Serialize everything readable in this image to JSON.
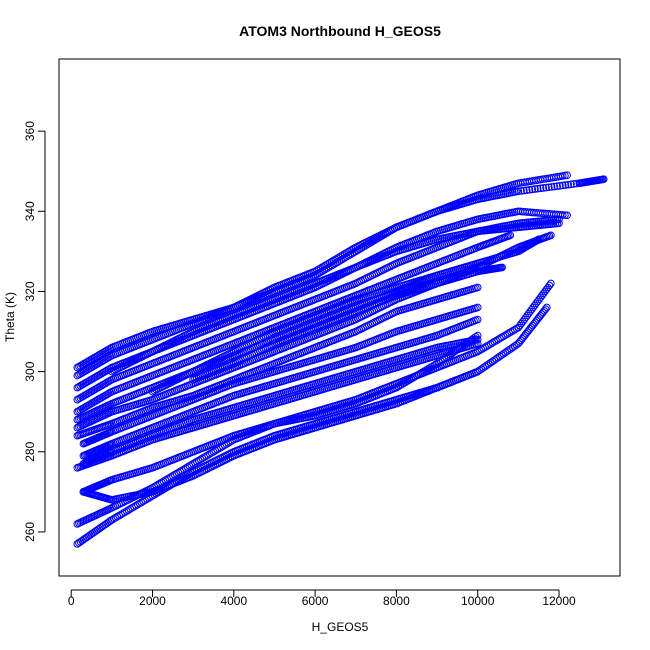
{
  "chart_data": {
    "type": "scatter",
    "title": "ATOM3 Northbound H_GEOS5",
    "xlabel": "H_GEOS5",
    "ylabel": "Theta (K)",
    "xlim": [
      -300,
      13500
    ],
    "ylim": [
      249,
      378
    ],
    "xticks": [
      0,
      2000,
      4000,
      6000,
      8000,
      10000,
      12000
    ],
    "yticks": [
      260,
      280,
      300,
      320,
      340,
      360
    ],
    "marker": "open-circle",
    "color": "#0000ff",
    "grid": false,
    "legend": "none",
    "series": [
      {
        "x": [
          150,
          1000,
          2000,
          3000,
          4000,
          5000,
          6000,
          7000,
          8000,
          9000,
          10000,
          11000,
          12200
        ],
        "values": [
          301,
          306,
          310,
          313,
          316,
          320,
          324,
          330,
          336,
          340,
          344,
          347,
          349
        ]
      },
      {
        "x": [
          150,
          1000,
          2000,
          3000,
          4000,
          5000,
          6000,
          7000,
          8000,
          9000,
          10000,
          11000,
          12500,
          13100
        ],
        "values": [
          299,
          304,
          308,
          312,
          316,
          321,
          325,
          331,
          336,
          340,
          343,
          345,
          347,
          348
        ]
      },
      {
        "x": [
          150,
          1000,
          2000,
          3000,
          4000,
          5000,
          6000,
          7000,
          8000,
          9000,
          10000,
          11000,
          12200
        ],
        "values": [
          296,
          301,
          305,
          309,
          313,
          317,
          321,
          326,
          331,
          335,
          338,
          340,
          339
        ]
      },
      {
        "x": [
          150,
          1000,
          2000,
          3000,
          4000,
          5000,
          6000,
          7000,
          8000,
          9000,
          10000,
          11000,
          12000
        ],
        "values": [
          293,
          298,
          302,
          306,
          310,
          314,
          318,
          322,
          327,
          331,
          335,
          337,
          338
        ]
      },
      {
        "x": [
          150,
          1000,
          2000,
          3000,
          4000,
          5000,
          6000,
          7000,
          8000,
          9000,
          10000,
          10800
        ],
        "values": [
          290,
          295,
          299,
          303,
          307,
          311,
          315,
          319,
          323,
          327,
          331,
          334
        ]
      },
      {
        "x": [
          150,
          1000,
          2000,
          3000,
          4000,
          5000,
          6000,
          7000,
          8000,
          9000,
          10000
        ],
        "values": [
          288,
          292,
          296,
          300,
          304,
          308,
          312,
          316,
          320,
          324,
          327
        ]
      },
      {
        "x": [
          150,
          1000,
          2000,
          3000,
          4000,
          5000,
          6000,
          7000,
          8000,
          9000,
          10000,
          11000,
          11800
        ],
        "values": [
          286,
          290,
          293,
          297,
          301,
          305,
          309,
          313,
          318,
          322,
          326,
          331,
          334
        ]
      },
      {
        "x": [
          150,
          1000,
          2000,
          3000,
          4000,
          5000,
          6000,
          7000,
          8000,
          9000,
          10000
        ],
        "values": [
          284,
          287,
          291,
          294,
          298,
          302,
          306,
          310,
          315,
          318,
          321
        ]
      },
      {
        "x": [
          300,
          1000,
          2000,
          3000,
          4000,
          5000,
          6000,
          7000,
          8000,
          9000,
          10000
        ],
        "values": [
          282,
          285,
          289,
          293,
          297,
          300,
          303,
          306,
          310,
          313,
          316
        ]
      },
      {
        "x": [
          300,
          1000,
          2000,
          3000,
          4000,
          5000,
          6000,
          7000,
          8000,
          9000,
          10000
        ],
        "values": [
          279,
          282,
          286,
          290,
          294,
          297,
          300,
          303,
          306,
          309,
          313
        ]
      },
      {
        "x": [
          300,
          1000,
          2000,
          3000,
          4000,
          5000,
          6000,
          7000,
          8000,
          9000,
          10000
        ],
        "values": [
          277,
          280,
          284,
          288,
          291,
          294,
          297,
          300,
          303,
          306,
          308
        ]
      },
      {
        "x": [
          150,
          1000,
          2000,
          3000,
          4000,
          5000,
          6000,
          7000,
          8000,
          9000,
          10000
        ],
        "values": [
          276,
          279,
          283,
          286,
          289,
          292,
          295,
          298,
          301,
          304,
          307
        ]
      },
      {
        "x": [
          300,
          1000,
          2000,
          3000,
          4000,
          5000,
          6000,
          7000,
          8000,
          9000,
          10000
        ],
        "values": [
          270,
          273,
          276,
          280,
          284,
          287,
          289,
          292,
          296,
          302,
          309
        ]
      },
      {
        "x": [
          150,
          1000,
          2000,
          3000,
          4000,
          5000,
          6000,
          7000,
          8000,
          9000,
          10000,
          11000,
          11800
        ],
        "values": [
          262,
          266,
          271,
          277,
          283,
          287,
          290,
          293,
          297,
          301,
          305,
          311,
          322
        ]
      },
      {
        "x": [
          150,
          1000,
          2000,
          3000,
          4000,
          5000,
          6000,
          7000,
          8000,
          9000,
          10000,
          11000,
          11700
        ],
        "values": [
          257,
          263,
          269,
          275,
          280,
          284,
          287,
          290,
          293,
          296,
          300,
          307,
          316
        ]
      },
      {
        "x": [
          300,
          1000,
          2000,
          3000,
          4000,
          5000,
          6000,
          7000,
          8000,
          9000,
          10000
        ],
        "values": [
          270,
          268,
          270,
          274,
          279,
          283,
          286,
          289,
          292,
          296,
          300
        ]
      },
      {
        "x": [
          1000,
          2000,
          3000,
          4000,
          5000,
          6000,
          7000,
          8000,
          9000,
          10000,
          11000,
          12000
        ],
        "values": [
          300,
          305,
          310,
          314,
          318,
          322,
          326,
          330,
          333,
          335,
          336,
          337
        ]
      },
      {
        "x": [
          2000,
          3000,
          4000,
          5000,
          6000,
          7000,
          8000,
          9000,
          10000,
          11000,
          11500
        ],
        "values": [
          295,
          300,
          305,
          310,
          314,
          318,
          321,
          324,
          327,
          330,
          333
        ]
      },
      {
        "x": [
          3000,
          4000,
          5000,
          6000,
          7000,
          8000,
          9000,
          10000,
          10600
        ],
        "values": [
          298,
          302,
          307,
          311,
          315,
          319,
          322,
          325,
          326
        ]
      }
    ]
  }
}
